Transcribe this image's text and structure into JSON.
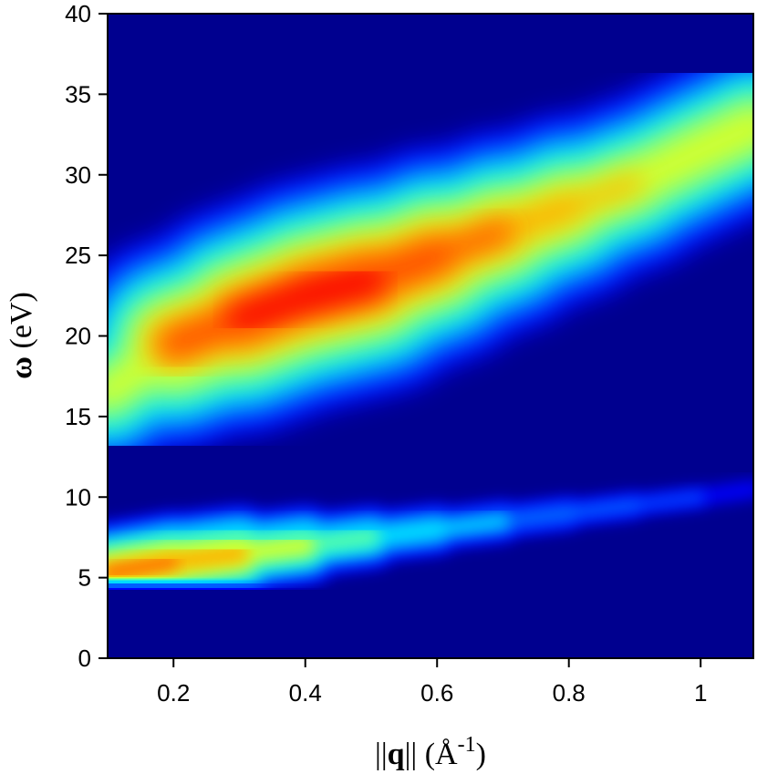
{
  "chart_data": {
    "type": "heatmap",
    "title": "",
    "xlabel": {
      "bars": "||",
      "symbol": "q",
      "open": " (",
      "unit": "Å",
      "exponent": "-1",
      "close": ")"
    },
    "ylabel": {
      "symbol": "ω",
      "unit": " (eV)"
    },
    "xlim": [
      0.1,
      1.08
    ],
    "ylim": [
      0,
      40
    ],
    "x_ticks": [
      0.2,
      0.4,
      0.6,
      0.8,
      1.0
    ],
    "x_tick_labels": [
      "0.2",
      "0.4",
      "0.6",
      "0.8",
      "1"
    ],
    "y_ticks": [
      0,
      5,
      10,
      15,
      20,
      25,
      30,
      35,
      40
    ],
    "y_tick_labels": [
      "0",
      "5",
      "10",
      "15",
      "20",
      "25",
      "30",
      "35",
      "40"
    ],
    "colormap": [
      "#00008f",
      "#0000ff",
      "#0080ff",
      "#00ffff",
      "#80ff80",
      "#ffff00",
      "#ff8000",
      "#ff0000",
      "#800000"
    ],
    "features": [
      {
        "name": "high-energy band ridge",
        "x": [
          0.1,
          0.2,
          0.3,
          0.4,
          0.5,
          0.6,
          0.7,
          0.8,
          0.9,
          1.0,
          1.08
        ],
        "y": [
          16.5,
          19.5,
          21.0,
          22.5,
          23.5,
          25.0,
          26.5,
          28.0,
          29.5,
          31.5,
          33.0
        ],
        "peak_intensity": [
          0.5,
          0.8,
          0.88,
          0.92,
          0.9,
          0.82,
          0.78,
          0.72,
          0.68,
          0.68,
          0.68
        ]
      },
      {
        "name": "low-energy band ridge",
        "x": [
          0.1,
          0.2,
          0.3,
          0.4,
          0.5,
          0.6,
          0.7,
          0.8,
          0.9,
          1.0,
          1.08
        ],
        "y": [
          5.3,
          6.0,
          6.5,
          7.0,
          7.5,
          8.0,
          8.5,
          9.0,
          9.5,
          10.0,
          10.5
        ],
        "peak_intensity": [
          0.78,
          0.82,
          0.72,
          0.58,
          0.48,
          0.4,
          0.34,
          0.28,
          0.24,
          0.2,
          0.18
        ]
      }
    ]
  }
}
